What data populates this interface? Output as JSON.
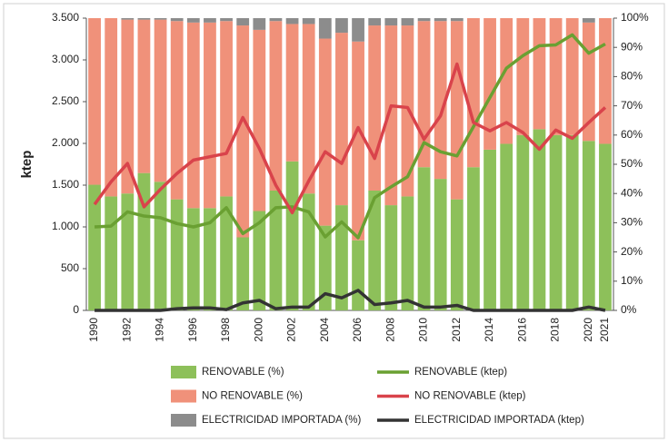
{
  "chart_data": {
    "type": "bar",
    "y_label": "ktep",
    "categories": [
      "1990",
      null,
      "1992",
      null,
      "1994",
      null,
      "1996",
      null,
      "1998",
      null,
      "2000",
      null,
      "2002",
      null,
      "2004",
      null,
      "2006",
      null,
      "2008",
      null,
      "2010",
      null,
      "2012",
      null,
      "2014",
      null,
      "2016",
      null,
      "2018",
      null,
      "2020",
      "2021"
    ],
    "ylim": [
      0,
      3500
    ],
    "yticks": [
      0,
      500,
      {
        "value": 1000,
        "label": "1.000"
      },
      {
        "value": 1500,
        "label": "1.500"
      },
      {
        "value": 2000,
        "label": "2.000"
      },
      {
        "value": 2500,
        "label": "2.500"
      },
      {
        "value": 3000,
        "label": "3.000"
      },
      {
        "value": 3500,
        "label": "3.500"
      }
    ],
    "y2lim": [
      0,
      100
    ],
    "y2ticks": [
      {
        "value": 0,
        "label": "0%"
      },
      {
        "value": 10,
        "label": "10%"
      },
      {
        "value": 20,
        "label": "20%"
      },
      {
        "value": 30,
        "label": "30%"
      },
      {
        "value": 40,
        "label": "40%"
      },
      {
        "value": 50,
        "label": "50%"
      },
      {
        "value": 60,
        "label": "60%"
      },
      {
        "value": 70,
        "label": "70%"
      },
      {
        "value": 80,
        "label": "80%"
      },
      {
        "value": 90,
        "label": "90%"
      },
      {
        "value": 100,
        "label": "100%"
      }
    ],
    "series": [
      {
        "name": "RENOVABLE (%)",
        "type": "bar",
        "axis": "y2",
        "color": "#8dc05a",
        "values": [
          43,
          39,
          40,
          47,
          44,
          38,
          35,
          35,
          39,
          25,
          34,
          41,
          51,
          40,
          29,
          36,
          24,
          41,
          36,
          39,
          49,
          45,
          38,
          49,
          55,
          57,
          60,
          62,
          60,
          60,
          58,
          57
        ]
      },
      {
        "name": "NO RENOVABLE (%)",
        "type": "bar",
        "axis": "y2",
        "color": "#f0917a",
        "values": [
          57,
          61,
          59.5,
          52.5,
          55.5,
          61,
          63.5,
          63.5,
          60,
          72.5,
          62,
          58,
          47,
          58,
          64,
          59,
          68,
          56.5,
          61.5,
          58.5,
          50,
          54,
          61,
          51,
          45,
          43,
          40,
          38,
          40,
          40,
          40.5,
          43
        ]
      },
      {
        "name": "ELECTRICIDAD IMPORTADA (%)",
        "type": "bar",
        "axis": "y2",
        "color": "#8c8c8c",
        "values": [
          0,
          0,
          0.5,
          0.5,
          0.5,
          1,
          1.5,
          1.5,
          1,
          2.5,
          4,
          1,
          2,
          2,
          7,
          5,
          8,
          2.5,
          2.5,
          2.5,
          1,
          1,
          1,
          0,
          0,
          0,
          0,
          0,
          0,
          0,
          1.5,
          0
        ]
      },
      {
        "name": "RENOVABLE (ktep)",
        "type": "line",
        "color": "#6aa032",
        "values": [
          1000,
          1010,
          1180,
          1130,
          1110,
          1040,
          1000,
          1050,
          1230,
          920,
          1050,
          1230,
          1240,
          1180,
          880,
          1060,
          870,
          1350,
          1480,
          1600,
          2010,
          1900,
          1850,
          2200,
          2550,
          2900,
          3050,
          3170,
          3180,
          3300,
          3080,
          3190
        ]
      },
      {
        "name": "NO RENOVABLE (ktep)",
        "type": "line",
        "color": "#d9434b",
        "values": [
          1270,
          1540,
          1760,
          1240,
          1450,
          1640,
          1800,
          1840,
          1880,
          2310,
          1940,
          1500,
          1170,
          1550,
          1900,
          1760,
          2190,
          1820,
          2450,
          2430,
          2050,
          2330,
          2950,
          2250,
          2150,
          2250,
          2130,
          1930,
          2160,
          2060,
          2250,
          2430
        ]
      },
      {
        "name": "ELECTRICIDAD IMPORTADA (ktep)",
        "type": "line",
        "color": "#333333",
        "values": [
          0,
          0,
          0,
          0,
          0,
          20,
          30,
          30,
          10,
          90,
          120,
          20,
          40,
          40,
          200,
          150,
          240,
          70,
          90,
          120,
          40,
          40,
          60,
          0,
          0,
          0,
          0,
          0,
          0,
          0,
          40,
          0
        ]
      }
    ]
  }
}
